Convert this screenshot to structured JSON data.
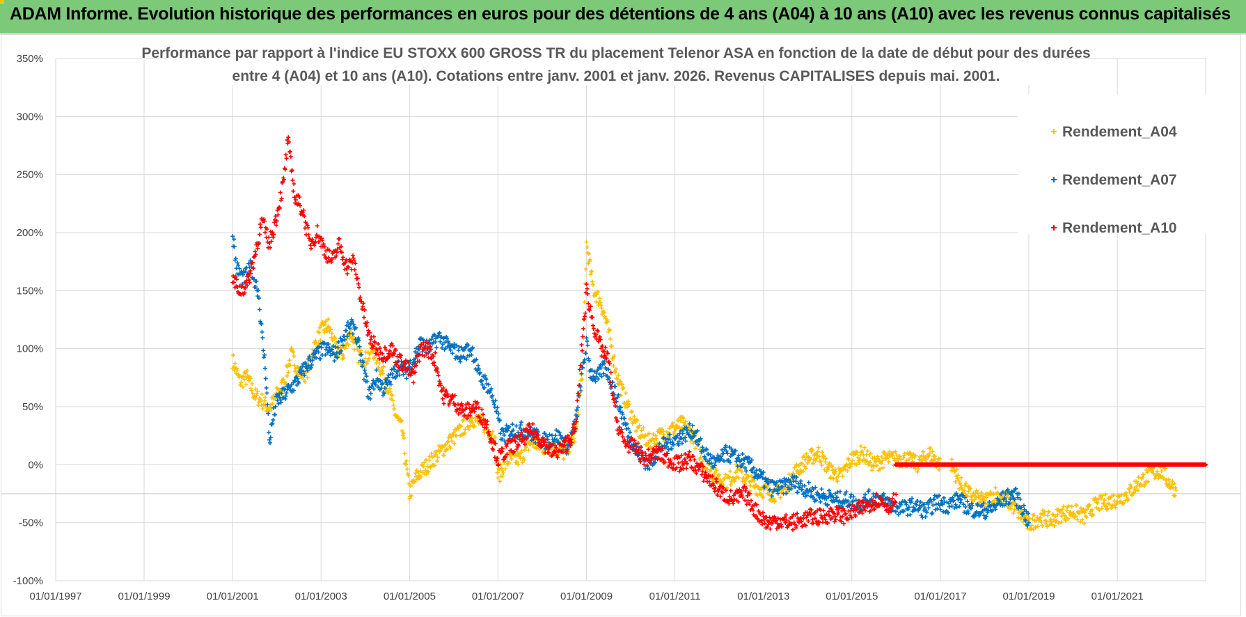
{
  "banner": {
    "title": "ADAM Informe. Evolution historique des performances en euros pour des détentions de 4 ans (A04) à 10 ans (A10) avec les revenus connus capitalisés",
    "background": "#7dc97a"
  },
  "chart_data": {
    "type": "scatter",
    "title_line1": "Performance par rapport à l'indice EU STOXX 600 GROSS TR  du placement Telenor ASA en fonction de la date de début pour des durées",
    "title_line2": "entre 4 (A04) et 10 ans (A10).  Cotations entre janv. 2001 et janv. 2026. Revenus CAPITALISES depuis mai. 2001.",
    "xlabel": "",
    "ylabel": "",
    "x_ticks": [
      "01/01/1997",
      "01/01/1999",
      "01/01/2001",
      "01/01/2003",
      "01/01/2005",
      "01/01/2007",
      "01/01/2009",
      "01/01/2011",
      "01/01/2013",
      "01/01/2015",
      "01/01/2017",
      "01/01/2019",
      "01/01/2021"
    ],
    "xlim": [
      "1997-01-01",
      "2022-12-31"
    ],
    "ylim": [
      -100,
      350
    ],
    "y_ticks": [
      -100,
      -50,
      0,
      50,
      100,
      150,
      200,
      250,
      300,
      350
    ],
    "y_unit": "%",
    "grid": true,
    "legend_position": "top-right",
    "marker": "+",
    "series": [
      {
        "name": "Rendement_A04",
        "color": "#ffc000",
        "points": [
          [
            "2001-01-01",
            90
          ],
          [
            "2001-03-01",
            72
          ],
          [
            "2001-05-01",
            75
          ],
          [
            "2001-07-01",
            60
          ],
          [
            "2001-09-01",
            55
          ],
          [
            "2001-11-01",
            48
          ],
          [
            "2002-01-01",
            60
          ],
          [
            "2002-03-01",
            70
          ],
          [
            "2002-05-01",
            95
          ],
          [
            "2002-07-01",
            80
          ],
          [
            "2002-09-01",
            78
          ],
          [
            "2002-11-01",
            100
          ],
          [
            "2003-01-01",
            115
          ],
          [
            "2003-03-01",
            120
          ],
          [
            "2003-05-01",
            100
          ],
          [
            "2003-07-01",
            95
          ],
          [
            "2003-09-01",
            115
          ],
          [
            "2003-11-01",
            95
          ],
          [
            "2004-01-01",
            90
          ],
          [
            "2004-03-01",
            100
          ],
          [
            "2004-05-01",
            85
          ],
          [
            "2004-07-01",
            70
          ],
          [
            "2004-09-01",
            45
          ],
          [
            "2004-11-01",
            30
          ],
          [
            "2005-01-01",
            -25
          ],
          [
            "2005-03-01",
            -10
          ],
          [
            "2005-06-01",
            0
          ],
          [
            "2005-09-01",
            10
          ],
          [
            "2005-12-01",
            20
          ],
          [
            "2006-03-01",
            30
          ],
          [
            "2006-06-01",
            40
          ],
          [
            "2006-09-01",
            35
          ],
          [
            "2006-12-01",
            25
          ],
          [
            "2007-01-01",
            -10
          ],
          [
            "2007-04-01",
            5
          ],
          [
            "2007-07-01",
            5
          ],
          [
            "2007-10-01",
            20
          ],
          [
            "2008-01-01",
            15
          ],
          [
            "2008-04-01",
            15
          ],
          [
            "2008-07-01",
            10
          ],
          [
            "2008-10-01",
            25
          ],
          [
            "2008-12-01",
            85
          ],
          [
            "2009-01-01",
            190
          ],
          [
            "2009-03-01",
            150
          ],
          [
            "2009-05-01",
            140
          ],
          [
            "2009-07-01",
            115
          ],
          [
            "2009-09-01",
            80
          ],
          [
            "2009-11-01",
            60
          ],
          [
            "2010-01-01",
            45
          ],
          [
            "2010-03-01",
            30
          ],
          [
            "2010-06-01",
            20
          ],
          [
            "2010-09-01",
            25
          ],
          [
            "2010-12-01",
            30
          ],
          [
            "2011-03-01",
            35
          ],
          [
            "2011-06-01",
            25
          ],
          [
            "2011-09-01",
            0
          ],
          [
            "2011-12-01",
            -10
          ],
          [
            "2012-03-01",
            -15
          ],
          [
            "2012-06-01",
            -5
          ],
          [
            "2012-09-01",
            -15
          ],
          [
            "2013-01-01",
            -22
          ],
          [
            "2013-04-01",
            -25
          ],
          [
            "2013-07-01",
            -20
          ],
          [
            "2013-10-01",
            -5
          ],
          [
            "2014-01-01",
            5
          ],
          [
            "2014-04-01",
            10
          ],
          [
            "2014-07-01",
            -5
          ],
          [
            "2014-10-01",
            -10
          ],
          [
            "2015-01-01",
            5
          ],
          [
            "2015-04-01",
            10
          ],
          [
            "2015-07-01",
            0
          ],
          [
            "2015-10-01",
            5
          ],
          [
            "2016-01-01",
            5
          ],
          [
            "2016-04-01",
            5
          ],
          [
            "2016-07-01",
            0
          ],
          [
            "2016-10-01",
            10
          ],
          [
            "2017-01-01",
            0
          ],
          [
            "2017-04-01",
            0
          ],
          [
            "2017-07-01",
            -20
          ],
          [
            "2017-10-01",
            -28
          ],
          [
            "2018-01-01",
            -32
          ],
          [
            "2018-04-01",
            -25
          ],
          [
            "2018-07-01",
            -30
          ],
          [
            "2018-10-01",
            -40
          ],
          [
            "2019-01-01",
            -52
          ],
          [
            "2019-04-01",
            -45
          ],
          [
            "2019-07-01",
            -48
          ],
          [
            "2019-10-01",
            -42
          ],
          [
            "2020-01-01",
            -40
          ],
          [
            "2020-04-01",
            -45
          ],
          [
            "2020-07-01",
            -35
          ],
          [
            "2020-10-01",
            -32
          ],
          [
            "2021-01-01",
            -30
          ],
          [
            "2021-04-01",
            -25
          ],
          [
            "2021-07-01",
            -15
          ],
          [
            "2021-10-01",
            -8
          ],
          [
            "2022-01-01",
            -5
          ],
          [
            "2022-03-01",
            -15
          ],
          [
            "2022-05-01",
            -22
          ]
        ]
      },
      {
        "name": "Rendement_A07",
        "color": "#0070c0",
        "points": [
          [
            "2001-01-01",
            200
          ],
          [
            "2001-02-01",
            170
          ],
          [
            "2001-04-01",
            160
          ],
          [
            "2001-06-01",
            170
          ],
          [
            "2001-08-01",
            150
          ],
          [
            "2001-09-01",
            110
          ],
          [
            "2001-10-01",
            80
          ],
          [
            "2001-11-01",
            20
          ],
          [
            "2001-12-01",
            40
          ],
          [
            "2002-01-01",
            55
          ],
          [
            "2002-03-01",
            60
          ],
          [
            "2002-06-01",
            70
          ],
          [
            "2002-09-01",
            85
          ],
          [
            "2002-12-01",
            95
          ],
          [
            "2003-02-01",
            100
          ],
          [
            "2003-05-01",
            95
          ],
          [
            "2003-08-01",
            115
          ],
          [
            "2003-10-01",
            120
          ],
          [
            "2003-12-01",
            90
          ],
          [
            "2004-02-01",
            60
          ],
          [
            "2004-04-01",
            75
          ],
          [
            "2004-06-01",
            65
          ],
          [
            "2004-08-01",
            75
          ],
          [
            "2004-10-01",
            85
          ],
          [
            "2004-12-01",
            80
          ],
          [
            "2005-02-01",
            90
          ],
          [
            "2005-04-01",
            105
          ],
          [
            "2005-06-01",
            100
          ],
          [
            "2005-09-01",
            110
          ],
          [
            "2005-12-01",
            100
          ],
          [
            "2006-03-01",
            95
          ],
          [
            "2006-06-01",
            100
          ],
          [
            "2006-08-01",
            75
          ],
          [
            "2006-10-01",
            70
          ],
          [
            "2006-12-01",
            55
          ],
          [
            "2007-02-01",
            25
          ],
          [
            "2007-05-01",
            30
          ],
          [
            "2007-08-01",
            30
          ],
          [
            "2007-11-01",
            25
          ],
          [
            "2008-02-01",
            20
          ],
          [
            "2008-05-01",
            25
          ],
          [
            "2008-08-01",
            15
          ],
          [
            "2008-10-01",
            35
          ],
          [
            "2009-01-01",
            105
          ],
          [
            "2009-02-01",
            80
          ],
          [
            "2009-04-01",
            75
          ],
          [
            "2009-06-01",
            85
          ],
          [
            "2009-08-01",
            70
          ],
          [
            "2009-10-01",
            50
          ],
          [
            "2009-12-01",
            30
          ],
          [
            "2010-03-01",
            10
          ],
          [
            "2010-06-01",
            0
          ],
          [
            "2010-09-01",
            15
          ],
          [
            "2010-12-01",
            20
          ],
          [
            "2011-03-01",
            25
          ],
          [
            "2011-06-01",
            30
          ],
          [
            "2011-09-01",
            10
          ],
          [
            "2011-12-01",
            0
          ],
          [
            "2012-03-01",
            10
          ],
          [
            "2012-06-01",
            5
          ],
          [
            "2012-09-01",
            0
          ],
          [
            "2012-12-01",
            -10
          ],
          [
            "2013-03-01",
            -20
          ],
          [
            "2013-06-01",
            -20
          ],
          [
            "2013-09-01",
            -15
          ],
          [
            "2013-12-01",
            -20
          ],
          [
            "2014-03-01",
            -25
          ],
          [
            "2014-06-01",
            -28
          ],
          [
            "2014-09-01",
            -30
          ],
          [
            "2014-12-01",
            -30
          ],
          [
            "2015-03-01",
            -35
          ],
          [
            "2015-06-01",
            -28
          ],
          [
            "2015-09-01",
            -30
          ],
          [
            "2015-12-01",
            -35
          ],
          [
            "2016-03-01",
            -38
          ],
          [
            "2016-06-01",
            -35
          ],
          [
            "2016-09-01",
            -40
          ],
          [
            "2016-12-01",
            -32
          ],
          [
            "2017-03-01",
            -35
          ],
          [
            "2017-06-01",
            -30
          ],
          [
            "2017-09-01",
            -38
          ],
          [
            "2017-12-01",
            -40
          ],
          [
            "2018-03-01",
            -38
          ],
          [
            "2018-06-01",
            -30
          ],
          [
            "2018-09-01",
            -25
          ],
          [
            "2018-11-01",
            -35
          ],
          [
            "2019-01-01",
            -50
          ]
        ]
      },
      {
        "name": "Rendement_A10",
        "color": "#ff0000",
        "points": [
          [
            "2001-01-01",
            160
          ],
          [
            "2001-03-01",
            150
          ],
          [
            "2001-05-01",
            155
          ],
          [
            "2001-07-01",
            180
          ],
          [
            "2001-09-01",
            210
          ],
          [
            "2001-11-01",
            190
          ],
          [
            "2002-01-01",
            215
          ],
          [
            "2002-03-01",
            245
          ],
          [
            "2002-04-01",
            280
          ],
          [
            "2002-06-01",
            230
          ],
          [
            "2002-08-01",
            220
          ],
          [
            "2002-10-01",
            190
          ],
          [
            "2002-12-01",
            200
          ],
          [
            "2003-02-01",
            185
          ],
          [
            "2003-04-01",
            175
          ],
          [
            "2003-06-01",
            190
          ],
          [
            "2003-08-01",
            170
          ],
          [
            "2003-10-01",
            175
          ],
          [
            "2003-12-01",
            140
          ],
          [
            "2004-02-01",
            110
          ],
          [
            "2004-04-01",
            100
          ],
          [
            "2004-06-01",
            95
          ],
          [
            "2004-08-01",
            100
          ],
          [
            "2004-10-01",
            90
          ],
          [
            "2004-12-01",
            85
          ],
          [
            "2005-02-01",
            75
          ],
          [
            "2005-04-01",
            100
          ],
          [
            "2005-06-01",
            100
          ],
          [
            "2005-08-01",
            90
          ],
          [
            "2005-10-01",
            60
          ],
          [
            "2006-01-01",
            55
          ],
          [
            "2006-04-01",
            45
          ],
          [
            "2006-07-01",
            50
          ],
          [
            "2006-10-01",
            35
          ],
          [
            "2007-01-01",
            5
          ],
          [
            "2007-04-01",
            15
          ],
          [
            "2007-07-01",
            20
          ],
          [
            "2007-10-01",
            30
          ],
          [
            "2008-01-01",
            20
          ],
          [
            "2008-04-01",
            10
          ],
          [
            "2008-07-01",
            15
          ],
          [
            "2008-10-01",
            30
          ],
          [
            "2009-01-01",
            150
          ],
          [
            "2009-03-01",
            120
          ],
          [
            "2009-05-01",
            100
          ],
          [
            "2009-07-01",
            90
          ],
          [
            "2009-09-01",
            40
          ],
          [
            "2009-11-01",
            20
          ],
          [
            "2010-02-01",
            15
          ],
          [
            "2010-05-01",
            5
          ],
          [
            "2010-08-01",
            10
          ],
          [
            "2010-11-01",
            5
          ],
          [
            "2011-02-01",
            0
          ],
          [
            "2011-05-01",
            5
          ],
          [
            "2011-08-01",
            -5
          ],
          [
            "2011-11-01",
            -15
          ],
          [
            "2012-02-01",
            -25
          ],
          [
            "2012-05-01",
            -30
          ],
          [
            "2012-08-01",
            -25
          ],
          [
            "2012-11-01",
            -40
          ],
          [
            "2013-02-01",
            -50
          ],
          [
            "2013-05-01",
            -48
          ],
          [
            "2013-08-01",
            -50
          ],
          [
            "2013-11-01",
            -48
          ],
          [
            "2014-02-01",
            -45
          ],
          [
            "2014-05-01",
            -45
          ],
          [
            "2014-08-01",
            -42
          ],
          [
            "2014-11-01",
            -44
          ],
          [
            "2015-02-01",
            -40
          ],
          [
            "2015-05-01",
            -35
          ],
          [
            "2015-08-01",
            -30
          ],
          [
            "2015-11-01",
            -35
          ],
          [
            "2016-01-01",
            -30
          ],
          [
            "2016-01-02",
            0
          ],
          [
            "2016-06-01",
            0
          ],
          [
            "2017-01-01",
            0
          ],
          [
            "2017-06-01",
            0
          ],
          [
            "2018-01-01",
            0
          ],
          [
            "2018-06-01",
            0
          ],
          [
            "2019-01-01",
            0
          ],
          [
            "2019-06-01",
            0
          ],
          [
            "2020-01-01",
            0
          ],
          [
            "2020-06-01",
            0
          ],
          [
            "2021-01-01",
            0
          ],
          [
            "2021-06-01",
            0
          ],
          [
            "2022-01-01",
            0
          ],
          [
            "2022-06-01",
            0
          ],
          [
            "2022-12-31",
            0
          ]
        ]
      }
    ]
  }
}
